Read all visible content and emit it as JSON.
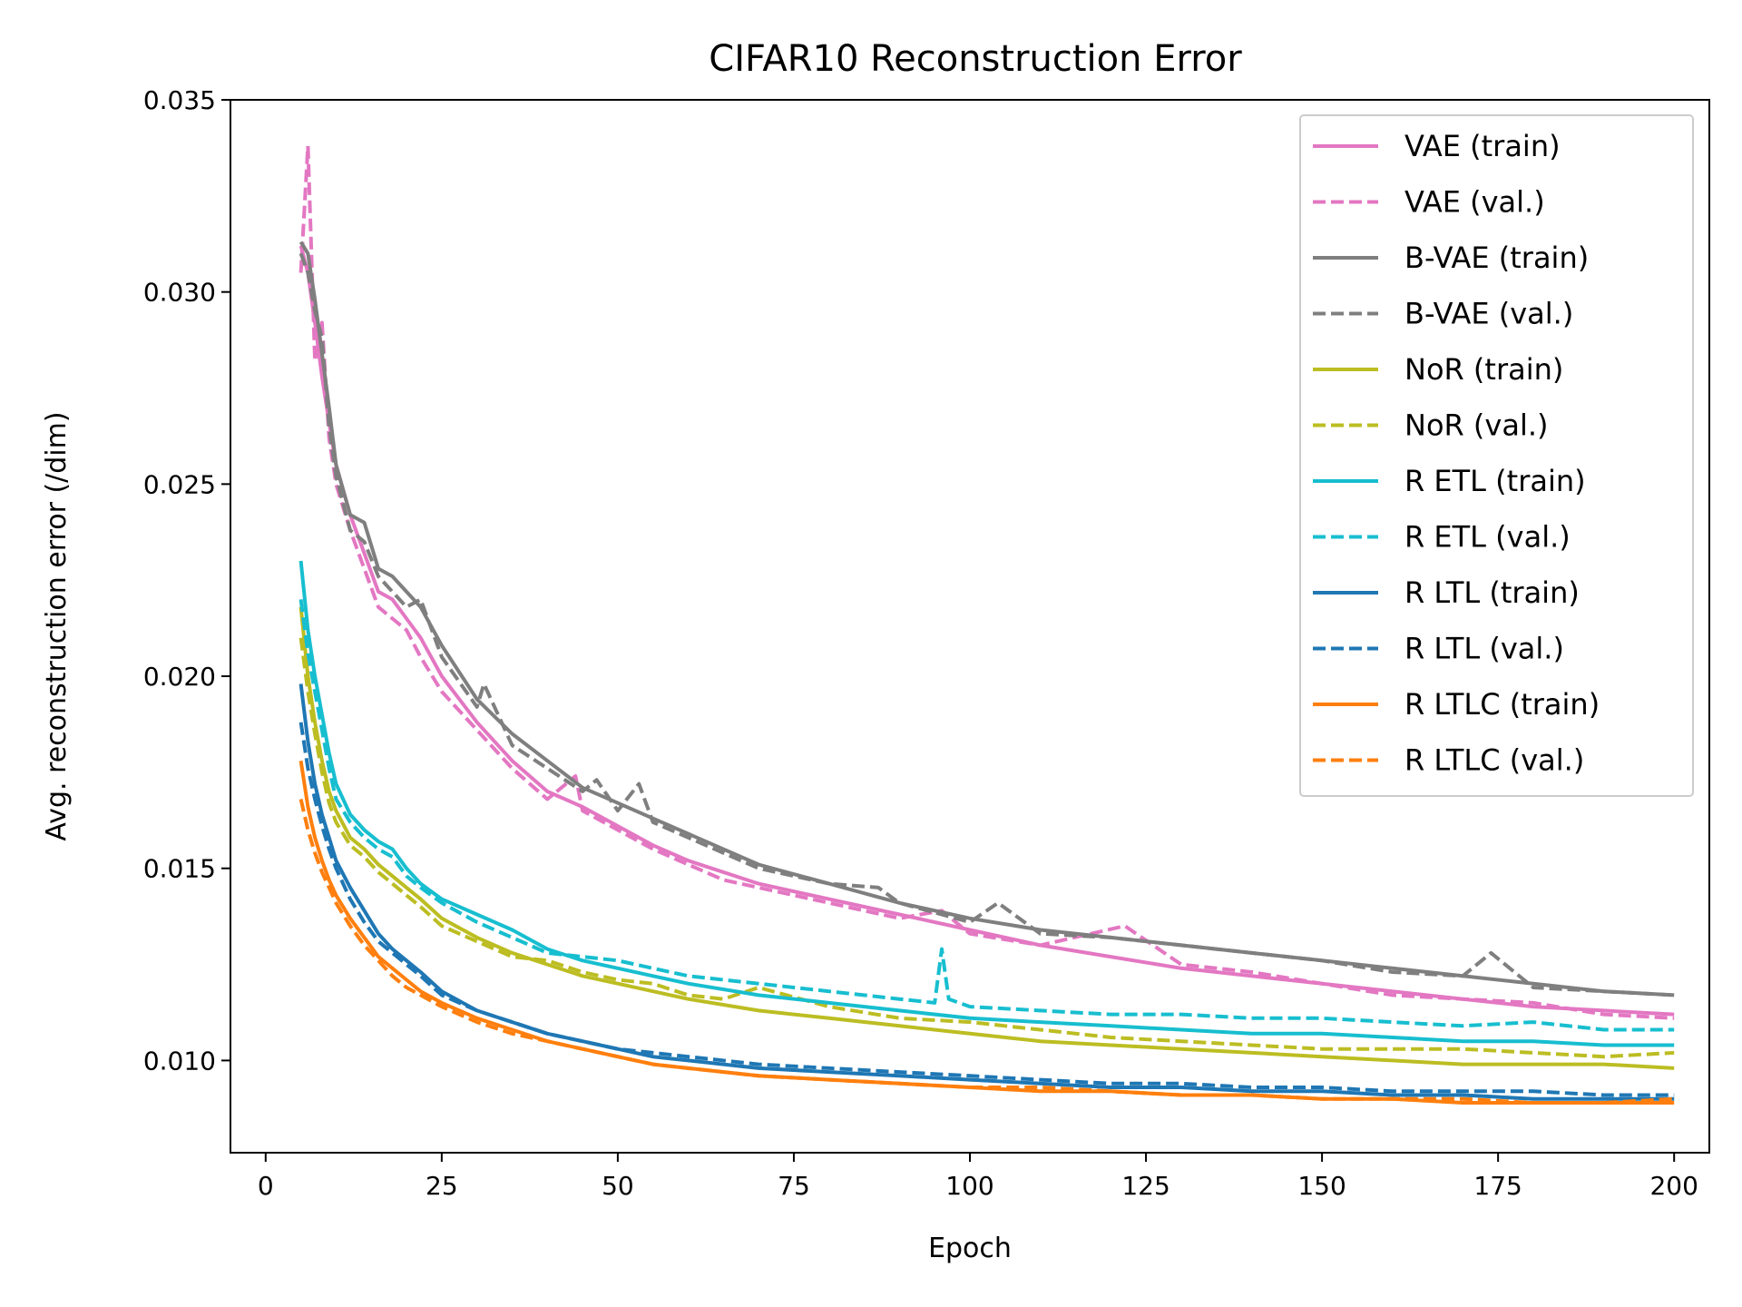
{
  "chart_data": {
    "type": "line",
    "title": "CIFAR10 Reconstruction Error",
    "xlabel": "Epoch",
    "ylabel": "Avg. reconstruction error (/dim)",
    "xlim": [
      -5,
      205
    ],
    "ylim": [
      0.0076,
      0.035
    ],
    "xticks": [
      0,
      25,
      50,
      75,
      100,
      125,
      150,
      175,
      200
    ],
    "xtick_labels": [
      "0",
      "25",
      "50",
      "75",
      "100",
      "125",
      "150",
      "175",
      "200"
    ],
    "yticks": [
      0.01,
      0.015,
      0.02,
      0.025,
      0.03,
      0.035
    ],
    "ytick_labels": [
      "0.010",
      "0.015",
      "0.020",
      "0.025",
      "0.030",
      "0.035"
    ],
    "grid": false,
    "legend_position": "top-right",
    "series": [
      {
        "name": "VAE (train)",
        "color": "#e377c2",
        "style": "solid",
        "x": [
          5,
          6,
          7,
          8,
          9,
          10,
          12,
          14,
          16,
          18,
          20,
          22,
          25,
          30,
          35,
          40,
          45,
          50,
          55,
          60,
          70,
          80,
          90,
          100,
          110,
          120,
          130,
          140,
          150,
          160,
          170,
          180,
          190,
          200
        ],
        "y": [
          0.0312,
          0.0305,
          0.0292,
          0.0278,
          0.0266,
          0.0255,
          0.0242,
          0.0232,
          0.0222,
          0.022,
          0.0215,
          0.021,
          0.02,
          0.0188,
          0.0178,
          0.017,
          0.0166,
          0.0161,
          0.0156,
          0.0152,
          0.0146,
          0.0142,
          0.0138,
          0.0134,
          0.013,
          0.0127,
          0.0124,
          0.0122,
          0.012,
          0.0118,
          0.0116,
          0.0114,
          0.0113,
          0.0112
        ]
      },
      {
        "name": "VAE (val.)",
        "color": "#e377c2",
        "style": "dashed",
        "x": [
          5,
          6,
          7,
          8,
          9,
          10,
          12,
          14,
          16,
          18,
          20,
          22,
          25,
          30,
          35,
          40,
          44,
          45,
          50,
          55,
          60,
          65,
          70,
          80,
          90,
          96,
          100,
          110,
          122,
          130,
          140,
          150,
          160,
          170,
          180,
          190,
          200
        ],
        "y": [
          0.0305,
          0.0338,
          0.0282,
          0.0292,
          0.0262,
          0.025,
          0.0238,
          0.0228,
          0.0218,
          0.0215,
          0.0212,
          0.0205,
          0.0196,
          0.0186,
          0.0176,
          0.0168,
          0.0174,
          0.0165,
          0.016,
          0.0155,
          0.0151,
          0.0147,
          0.0145,
          0.0141,
          0.0137,
          0.0139,
          0.0133,
          0.013,
          0.0135,
          0.0125,
          0.0123,
          0.012,
          0.0117,
          0.0116,
          0.0115,
          0.0112,
          0.0111
        ]
      },
      {
        "name": "B-VAE (train)",
        "color": "#7f7f7f",
        "style": "solid",
        "x": [
          5,
          6,
          7,
          8,
          9,
          10,
          12,
          14,
          16,
          18,
          20,
          22,
          25,
          30,
          35,
          40,
          45,
          50,
          55,
          60,
          70,
          80,
          90,
          100,
          110,
          120,
          130,
          140,
          150,
          160,
          170,
          180,
          190,
          200
        ],
        "y": [
          0.0313,
          0.031,
          0.0298,
          0.0284,
          0.027,
          0.0255,
          0.0242,
          0.024,
          0.0228,
          0.0226,
          0.0222,
          0.0218,
          0.0208,
          0.0194,
          0.0185,
          0.0178,
          0.0171,
          0.0167,
          0.0163,
          0.0159,
          0.0151,
          0.0146,
          0.0141,
          0.0137,
          0.0134,
          0.0132,
          0.013,
          0.0128,
          0.0126,
          0.0124,
          0.0122,
          0.012,
          0.0118,
          0.0117
        ]
      },
      {
        "name": "B-VAE (val.)",
        "color": "#7f7f7f",
        "style": "dashed",
        "x": [
          5,
          6,
          7,
          8,
          9,
          10,
          12,
          14,
          16,
          18,
          20,
          22,
          25,
          30,
          31,
          35,
          40,
          45,
          47,
          50,
          53,
          55,
          60,
          70,
          80,
          87,
          90,
          100,
          104,
          110,
          120,
          130,
          140,
          150,
          160,
          170,
          174,
          180,
          190,
          200
        ],
        "y": [
          0.031,
          0.0305,
          0.0295,
          0.0288,
          0.0265,
          0.0252,
          0.0238,
          0.0235,
          0.0226,
          0.0222,
          0.0218,
          0.022,
          0.0205,
          0.0192,
          0.0198,
          0.0182,
          0.0176,
          0.017,
          0.0173,
          0.0165,
          0.0172,
          0.0162,
          0.0158,
          0.015,
          0.0146,
          0.0145,
          0.0141,
          0.0136,
          0.0141,
          0.0133,
          0.0132,
          0.013,
          0.0128,
          0.0126,
          0.0123,
          0.0122,
          0.0128,
          0.0119,
          0.0118,
          0.0117
        ]
      },
      {
        "name": "NoR (train)",
        "color": "#bcbd22",
        "style": "solid",
        "x": [
          5,
          6,
          7,
          8,
          9,
          10,
          12,
          14,
          16,
          18,
          20,
          22,
          25,
          30,
          35,
          40,
          45,
          50,
          55,
          60,
          70,
          80,
          90,
          100,
          110,
          120,
          130,
          140,
          150,
          160,
          170,
          180,
          190,
          200
        ],
        "y": [
          0.0218,
          0.02,
          0.0188,
          0.0178,
          0.017,
          0.0165,
          0.0158,
          0.0155,
          0.0151,
          0.0148,
          0.0145,
          0.0142,
          0.0137,
          0.0132,
          0.0128,
          0.0125,
          0.0122,
          0.012,
          0.0118,
          0.0116,
          0.0113,
          0.0111,
          0.0109,
          0.0107,
          0.0105,
          0.0104,
          0.0103,
          0.0102,
          0.0101,
          0.01,
          0.0099,
          0.0099,
          0.0099,
          0.0098
        ]
      },
      {
        "name": "NoR (val.)",
        "color": "#bcbd22",
        "style": "dashed",
        "x": [
          5,
          6,
          7,
          8,
          9,
          10,
          12,
          14,
          16,
          18,
          20,
          22,
          25,
          30,
          35,
          40,
          45,
          50,
          55,
          60,
          65,
          70,
          80,
          90,
          100,
          110,
          120,
          130,
          140,
          150,
          160,
          170,
          180,
          190,
          200
        ],
        "y": [
          0.021,
          0.0196,
          0.0185,
          0.0175,
          0.0167,
          0.0162,
          0.0156,
          0.0153,
          0.0149,
          0.0146,
          0.0143,
          0.014,
          0.0135,
          0.0131,
          0.0127,
          0.0126,
          0.0123,
          0.0121,
          0.012,
          0.0117,
          0.0116,
          0.0119,
          0.0114,
          0.0111,
          0.011,
          0.0108,
          0.0106,
          0.0105,
          0.0104,
          0.0103,
          0.0103,
          0.0103,
          0.0102,
          0.0101,
          0.0102
        ]
      },
      {
        "name": "R ETL (train)",
        "color": "#17becf",
        "style": "solid",
        "x": [
          5,
          6,
          7,
          8,
          9,
          10,
          12,
          14,
          16,
          18,
          20,
          22,
          25,
          30,
          35,
          40,
          45,
          50,
          55,
          60,
          70,
          80,
          90,
          100,
          110,
          120,
          130,
          140,
          150,
          160,
          170,
          180,
          190,
          200
        ],
        "y": [
          0.023,
          0.0212,
          0.02,
          0.019,
          0.018,
          0.0172,
          0.0164,
          0.016,
          0.0157,
          0.0155,
          0.015,
          0.0146,
          0.0142,
          0.0138,
          0.0134,
          0.0129,
          0.0126,
          0.0124,
          0.0122,
          0.012,
          0.0117,
          0.0115,
          0.0113,
          0.0111,
          0.011,
          0.0109,
          0.0108,
          0.0107,
          0.0107,
          0.0106,
          0.0105,
          0.0105,
          0.0104,
          0.0104
        ]
      },
      {
        "name": "R ETL (val.)",
        "color": "#17becf",
        "style": "dashed",
        "x": [
          5,
          6,
          7,
          8,
          9,
          10,
          12,
          14,
          16,
          18,
          20,
          22,
          25,
          30,
          35,
          40,
          45,
          50,
          55,
          60,
          70,
          80,
          90,
          95,
          96,
          97,
          100,
          110,
          120,
          130,
          140,
          150,
          160,
          170,
          180,
          190,
          200
        ],
        "y": [
          0.022,
          0.0206,
          0.0196,
          0.0186,
          0.0176,
          0.0168,
          0.0162,
          0.0158,
          0.0155,
          0.0153,
          0.0148,
          0.0145,
          0.0141,
          0.0136,
          0.0132,
          0.0128,
          0.0127,
          0.0126,
          0.0124,
          0.0122,
          0.012,
          0.0118,
          0.0116,
          0.0115,
          0.0129,
          0.0116,
          0.0114,
          0.0113,
          0.0112,
          0.0112,
          0.0111,
          0.0111,
          0.011,
          0.0109,
          0.011,
          0.0108,
          0.0108
        ]
      },
      {
        "name": "R LTL (train)",
        "color": "#1f77b4",
        "style": "solid",
        "x": [
          5,
          6,
          7,
          8,
          9,
          10,
          12,
          14,
          16,
          18,
          20,
          22,
          25,
          30,
          35,
          40,
          45,
          50,
          55,
          60,
          70,
          80,
          90,
          100,
          110,
          120,
          130,
          140,
          150,
          160,
          170,
          180,
          190,
          200
        ],
        "y": [
          0.0198,
          0.0183,
          0.0172,
          0.0164,
          0.0158,
          0.0152,
          0.0145,
          0.0139,
          0.0133,
          0.0129,
          0.0126,
          0.0123,
          0.0118,
          0.0113,
          0.011,
          0.0107,
          0.0105,
          0.0103,
          0.0101,
          0.01,
          0.0098,
          0.0097,
          0.0096,
          0.0095,
          0.0094,
          0.0093,
          0.0093,
          0.0092,
          0.0092,
          0.0091,
          0.0091,
          0.009,
          0.009,
          0.009
        ]
      },
      {
        "name": "R LTL (val.)",
        "color": "#1f77b4",
        "style": "dashed",
        "x": [
          5,
          6,
          7,
          8,
          9,
          10,
          12,
          14,
          16,
          18,
          20,
          22,
          25,
          30,
          35,
          40,
          45,
          50,
          55,
          60,
          70,
          80,
          90,
          100,
          110,
          120,
          130,
          140,
          150,
          160,
          170,
          180,
          190,
          200
        ],
        "y": [
          0.0188,
          0.0176,
          0.0168,
          0.0161,
          0.0155,
          0.015,
          0.0142,
          0.0136,
          0.0131,
          0.0128,
          0.0125,
          0.0122,
          0.0117,
          0.0113,
          0.011,
          0.0107,
          0.0105,
          0.0103,
          0.0102,
          0.0101,
          0.0099,
          0.0098,
          0.0097,
          0.0096,
          0.0095,
          0.0094,
          0.0094,
          0.0093,
          0.0093,
          0.0092,
          0.0092,
          0.0092,
          0.0091,
          0.0091
        ]
      },
      {
        "name": "R LTLC (train)",
        "color": "#ff7f0e",
        "style": "solid",
        "x": [
          5,
          6,
          7,
          8,
          9,
          10,
          12,
          14,
          16,
          18,
          20,
          22,
          25,
          30,
          35,
          40,
          45,
          50,
          55,
          60,
          70,
          80,
          90,
          100,
          110,
          120,
          130,
          140,
          150,
          160,
          170,
          180,
          190,
          200
        ],
        "y": [
          0.0178,
          0.0166,
          0.0158,
          0.0152,
          0.0147,
          0.0143,
          0.0137,
          0.0132,
          0.0127,
          0.0124,
          0.0121,
          0.0118,
          0.0115,
          0.0111,
          0.0108,
          0.0105,
          0.0103,
          0.0101,
          0.0099,
          0.0098,
          0.0096,
          0.0095,
          0.0094,
          0.0093,
          0.0092,
          0.0092,
          0.0091,
          0.0091,
          0.009,
          0.009,
          0.0089,
          0.0089,
          0.0089,
          0.0089
        ]
      },
      {
        "name": "R LTLC (val.)",
        "color": "#ff7f0e",
        "style": "dashed",
        "x": [
          5,
          6,
          7,
          8,
          9,
          10,
          12,
          14,
          16,
          18,
          20,
          22,
          25,
          30,
          35,
          40,
          45,
          50,
          55,
          60,
          70,
          80,
          90,
          100,
          110,
          120,
          130,
          140,
          150,
          160,
          170,
          180,
          190,
          200
        ],
        "y": [
          0.0168,
          0.016,
          0.0154,
          0.0149,
          0.0145,
          0.0141,
          0.0135,
          0.013,
          0.0126,
          0.0122,
          0.0119,
          0.0117,
          0.0114,
          0.011,
          0.0107,
          0.0105,
          0.0103,
          0.0101,
          0.0099,
          0.0098,
          0.0096,
          0.0095,
          0.0094,
          0.0093,
          0.0093,
          0.0092,
          0.0091,
          0.0091,
          0.009,
          0.009,
          0.009,
          0.0089,
          0.0089,
          0.009
        ]
      }
    ]
  }
}
